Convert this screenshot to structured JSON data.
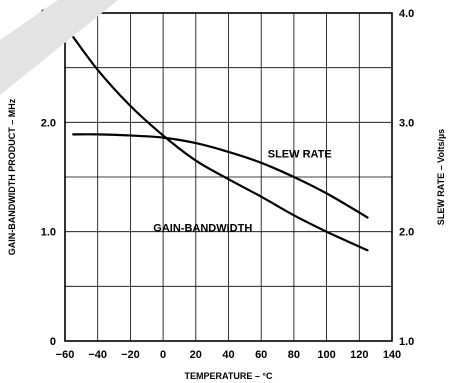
{
  "chart_data": {
    "type": "line",
    "xlabel": "TEMPERATURE – °C",
    "ylabel_left": "GAIN-BANDWIDTH PRODUCT – MHz",
    "ylabel_right": "SLEW RATE – Volts/µs",
    "xlim": [
      -60,
      140
    ],
    "ylim_left": [
      0,
      3.0
    ],
    "ylim_right": [
      1.0,
      4.0
    ],
    "x_ticks": [
      "−60",
      "−40",
      "−20",
      "0",
      "20",
      "40",
      "60",
      "80",
      "100",
      "120",
      "140"
    ],
    "y_ticks_left": [
      "0",
      "1.0",
      "2.0",
      "3.0"
    ],
    "y_ticks_right": [
      "1.0",
      "2.0",
      "3.0",
      "4.0"
    ],
    "grid": true,
    "series": [
      {
        "name": "GAIN-BANDWIDTH",
        "axis": "left",
        "x": [
          -55,
          -40,
          -20,
          0,
          20,
          40,
          60,
          80,
          100,
          125
        ],
        "y": [
          2.78,
          2.48,
          2.15,
          1.88,
          1.65,
          1.48,
          1.32,
          1.15,
          1.0,
          0.83
        ]
      },
      {
        "name": "SLEW RATE",
        "axis": "right",
        "x": [
          -55,
          -40,
          -20,
          0,
          20,
          40,
          60,
          80,
          100,
          125
        ],
        "y": [
          2.89,
          2.89,
          2.88,
          2.86,
          2.81,
          2.73,
          2.63,
          2.5,
          2.35,
          2.13
        ]
      }
    ]
  }
}
